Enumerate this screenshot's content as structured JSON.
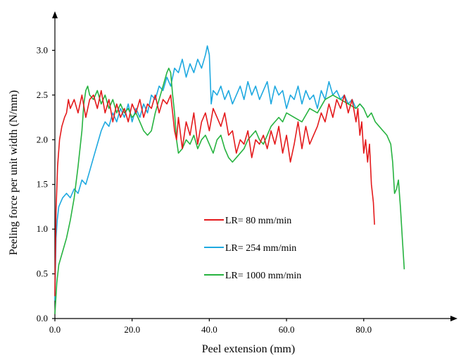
{
  "chart_data": {
    "type": "line",
    "title": "",
    "xlabel": "Peel extension  (mm)",
    "ylabel": "Peeling force per unit width (N/mm)",
    "xlim": [
      0,
      91
    ],
    "ylim": [
      0,
      3.15
    ],
    "xticks": [
      0,
      20,
      40,
      60,
      80
    ],
    "xtick_labels": [
      "0.0",
      "20.0",
      "40.0",
      "60.0",
      "80.0"
    ],
    "yticks": [
      0,
      0.5,
      1.0,
      1.5,
      2.0,
      2.5,
      3.0
    ],
    "ytick_labels": [
      "0.0",
      "0.5",
      "1.0",
      "1.5",
      "2.0",
      "2.5",
      "3.0"
    ],
    "grid": false,
    "legend_position": "center-left inside plot",
    "series": [
      {
        "name": "LR= 80 mm/min",
        "color": "#e41a1c",
        "x": [
          0,
          0.3,
          0.7,
          1.2,
          1.8,
          2.5,
          3.0,
          3.5,
          4.0,
          5.0,
          6.0,
          7.0,
          8.0,
          9.0,
          10.0,
          11.0,
          12.0,
          13.0,
          14.0,
          15.0,
          16.0,
          17.0,
          18.0,
          19.0,
          20.0,
          21.0,
          22.0,
          23.0,
          24.0,
          25.0,
          26.0,
          27.0,
          28.0,
          29.0,
          30.0,
          30.5,
          31.0,
          31.5,
          32.0,
          33.0,
          34.0,
          35.0,
          36.0,
          37.0,
          38.0,
          39.0,
          40.0,
          41.0,
          42.0,
          43.0,
          44.0,
          45.0,
          46.0,
          47.0,
          48.0,
          49.0,
          50.0,
          51.0,
          52.0,
          53.0,
          54.0,
          55.0,
          56.0,
          57.0,
          58.0,
          59.0,
          60.0,
          61.0,
          62.0,
          63.0,
          64.0,
          65.0,
          66.0,
          67.0,
          68.0,
          69.0,
          70.0,
          71.0,
          72.0,
          73.0,
          74.0,
          75.0,
          76.0,
          77.0,
          78.0,
          78.5,
          79.0,
          79.5,
          80.0,
          80.5,
          81.0,
          81.5,
          82.0,
          82.5,
          82.8
        ],
        "y": [
          0.25,
          1.2,
          1.7,
          2.0,
          2.15,
          2.25,
          2.3,
          2.45,
          2.35,
          2.45,
          2.3,
          2.5,
          2.25,
          2.45,
          2.5,
          2.35,
          2.55,
          2.3,
          2.45,
          2.2,
          2.4,
          2.25,
          2.35,
          2.2,
          2.4,
          2.3,
          2.45,
          2.25,
          2.4,
          2.35,
          2.5,
          2.3,
          2.45,
          2.4,
          2.5,
          2.3,
          2.1,
          2.0,
          2.25,
          1.9,
          2.2,
          2.05,
          2.3,
          1.95,
          2.2,
          2.3,
          2.1,
          2.35,
          2.25,
          2.15,
          2.3,
          2.05,
          2.1,
          1.85,
          2.0,
          1.95,
          2.1,
          1.8,
          2.0,
          1.95,
          2.05,
          1.9,
          2.1,
          1.95,
          2.15,
          1.85,
          2.05,
          1.75,
          1.95,
          2.2,
          1.9,
          2.15,
          1.95,
          2.05,
          2.15,
          2.3,
          2.2,
          2.4,
          2.25,
          2.45,
          2.35,
          2.5,
          2.3,
          2.45,
          2.2,
          2.35,
          2.05,
          2.2,
          1.85,
          2.0,
          1.75,
          1.95,
          1.5,
          1.3,
          1.05
        ]
      },
      {
        "name": "LR= 254 mm/min",
        "color": "#1fa9e0",
        "x": [
          0,
          0.3,
          0.6,
          1.0,
          1.5,
          2.0,
          3.0,
          4.0,
          5.0,
          6.0,
          7.0,
          8.0,
          9.0,
          10.0,
          11.0,
          12.0,
          13.0,
          14.0,
          15.0,
          16.0,
          17.0,
          18.0,
          19.0,
          20.0,
          21.0,
          22.0,
          23.0,
          24.0,
          25.0,
          26.0,
          27.0,
          28.0,
          29.0,
          30.0,
          31.0,
          32.0,
          33.0,
          34.0,
          35.0,
          36.0,
          37.0,
          38.0,
          39.0,
          39.5,
          40.0,
          40.5,
          41.0,
          42.0,
          43.0,
          44.0,
          45.0,
          46.0,
          47.0,
          48.0,
          49.0,
          50.0,
          51.0,
          52.0,
          53.0,
          54.0,
          55.0,
          56.0,
          57.0,
          58.0,
          59.0,
          60.0,
          61.0,
          62.0,
          63.0,
          64.0,
          65.0,
          66.0,
          67.0,
          68.0,
          69.0,
          70.0,
          71.0,
          72.0,
          73.0,
          74.0,
          75.0,
          76.0,
          77.0,
          78.0,
          79.0,
          80.0
        ],
        "y": [
          0.2,
          0.9,
          1.1,
          1.25,
          1.3,
          1.35,
          1.4,
          1.35,
          1.45,
          1.4,
          1.55,
          1.5,
          1.65,
          1.8,
          1.95,
          2.1,
          2.2,
          2.15,
          2.3,
          2.2,
          2.35,
          2.25,
          2.4,
          2.2,
          2.35,
          2.25,
          2.4,
          2.3,
          2.5,
          2.45,
          2.6,
          2.55,
          2.7,
          2.6,
          2.8,
          2.75,
          2.9,
          2.7,
          2.85,
          2.75,
          2.9,
          2.8,
          2.95,
          3.05,
          2.95,
          2.4,
          2.55,
          2.5,
          2.6,
          2.45,
          2.55,
          2.4,
          2.5,
          2.6,
          2.45,
          2.65,
          2.5,
          2.6,
          2.45,
          2.55,
          2.65,
          2.4,
          2.6,
          2.5,
          2.55,
          2.35,
          2.5,
          2.45,
          2.6,
          2.4,
          2.55,
          2.45,
          2.5,
          2.35,
          2.55,
          2.45,
          2.65,
          2.5,
          2.55,
          2.45,
          2.5,
          2.4,
          2.45,
          2.35,
          2.4,
          2.35
        ]
      },
      {
        "name": "LR= 1000 mm/min",
        "color": "#27b340",
        "x": [
          0,
          0.5,
          1.0,
          2.0,
          3.0,
          4.0,
          5.0,
          6.0,
          7.0,
          7.5,
          8.0,
          8.5,
          9.0,
          10.0,
          11.0,
          12.0,
          13.0,
          14.0,
          15.0,
          16.0,
          17.0,
          18.0,
          19.0,
          20.0,
          21.0,
          22.0,
          23.0,
          24.0,
          25.0,
          26.0,
          27.0,
          28.0,
          29.0,
          29.5,
          30.0,
          30.5,
          31.0,
          31.5,
          32.0,
          33.0,
          34.0,
          35.0,
          36.0,
          37.0,
          38.0,
          39.0,
          40.0,
          41.0,
          42.0,
          43.0,
          44.0,
          45.0,
          46.0,
          47.0,
          48.0,
          49.0,
          50.0,
          51.0,
          52.0,
          53.0,
          54.0,
          55.0,
          56.0,
          57.0,
          58.0,
          59.0,
          60.0,
          62.0,
          64.0,
          66.0,
          68.0,
          70.0,
          72.0,
          74.0,
          76.0,
          78.0,
          79.0,
          80.0,
          81.0,
          82.0,
          83.0,
          84.0,
          85.0,
          86.0,
          87.0,
          87.5,
          88.0,
          88.5,
          89.0,
          89.5,
          90.0,
          90.5
        ],
        "y": [
          0.05,
          0.4,
          0.6,
          0.75,
          0.9,
          1.1,
          1.35,
          1.7,
          2.1,
          2.4,
          2.55,
          2.6,
          2.5,
          2.45,
          2.55,
          2.4,
          2.5,
          2.35,
          2.45,
          2.3,
          2.4,
          2.3,
          2.35,
          2.25,
          2.3,
          2.2,
          2.1,
          2.05,
          2.1,
          2.3,
          2.45,
          2.6,
          2.75,
          2.8,
          2.75,
          2.5,
          2.3,
          2.0,
          1.85,
          1.9,
          2.0,
          1.95,
          2.05,
          1.9,
          2.0,
          2.05,
          1.95,
          1.85,
          2.0,
          2.05,
          1.9,
          1.8,
          1.75,
          1.8,
          1.85,
          1.9,
          2.0,
          2.05,
          2.1,
          2.0,
          1.95,
          2.05,
          2.15,
          2.2,
          2.25,
          2.2,
          2.3,
          2.25,
          2.2,
          2.35,
          2.3,
          2.45,
          2.5,
          2.45,
          2.4,
          2.35,
          2.4,
          2.35,
          2.25,
          2.3,
          2.2,
          2.15,
          2.1,
          2.05,
          1.95,
          1.75,
          1.4,
          1.45,
          1.55,
          1.25,
          0.9,
          0.55
        ]
      }
    ]
  }
}
